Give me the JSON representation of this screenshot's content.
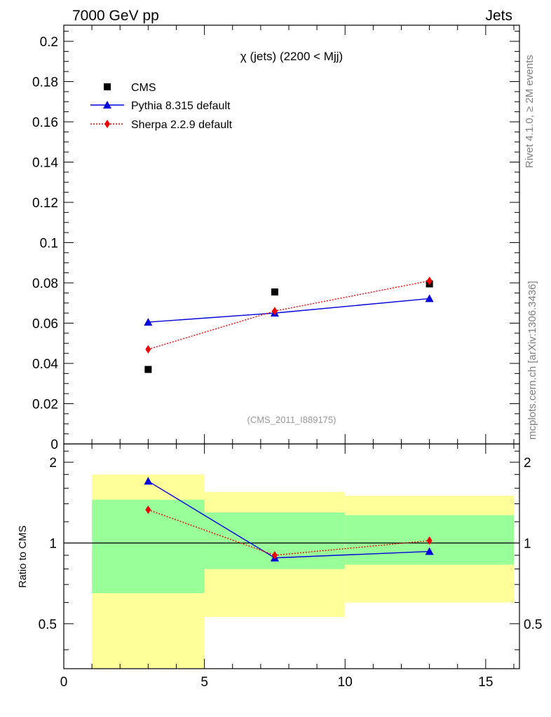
{
  "header": {
    "left": "7000 GeV pp",
    "right": "Jets"
  },
  "side_labels": {
    "rivet": "Rivet 4.1.0, ≥ 2M events",
    "mcplots": "mcplots.cern.ch [arXiv:1306.3436]"
  },
  "watermark": "(CMS_2011_I889175)",
  "chart_data": [
    {
      "type": "scatter",
      "title": "χ (jets) (2200 < Mjj)",
      "xlim": [
        0,
        16.2
      ],
      "ylim": [
        0,
        0.208
      ],
      "xlabel": "",
      "ylabel": "",
      "y_ticks": [
        "0",
        "0.02",
        "0.04",
        "0.06",
        "0.08",
        "0.1",
        "0.12",
        "0.14",
        "0.16",
        "0.18",
        "0.2"
      ],
      "legend_position": "top-left",
      "series": [
        {
          "name": "CMS",
          "color": "#000000",
          "marker": "square",
          "line": "none",
          "x": [
            3,
            7.5,
            13
          ],
          "y": [
            0.037,
            0.0755,
            0.0795
          ]
        },
        {
          "name": "Pythia 8.315 default",
          "color": "#0000dd",
          "marker": "triangle",
          "line": "solid",
          "x": [
            3,
            7.5,
            13
          ],
          "y": [
            0.0605,
            0.065,
            0.0722
          ]
        },
        {
          "name": "Sherpa 2.2.9 default",
          "color": "#ee0000",
          "marker": "diamond",
          "line": "dotted",
          "x": [
            3,
            7.5,
            13
          ],
          "y": [
            0.047,
            0.066,
            0.081
          ]
        }
      ]
    },
    {
      "type": "line",
      "title": "",
      "ylabel": "Ratio to CMS",
      "xlim": [
        0,
        16.2
      ],
      "ylim": [
        0.34,
        2.34
      ],
      "y_scale": "log",
      "x_ticks": [
        "0",
        "5",
        "10",
        "15"
      ],
      "y_ticks": [
        "0.5",
        "1",
        "2"
      ],
      "reference_line": 1,
      "bands": [
        {
          "x_range": [
            1,
            5
          ],
          "yellow": [
            0.3,
            1.8
          ],
          "green": [
            0.65,
            1.45
          ]
        },
        {
          "x_range": [
            5,
            10
          ],
          "yellow": [
            0.53,
            1.55
          ],
          "green": [
            0.8,
            1.3
          ]
        },
        {
          "x_range": [
            10,
            16
          ],
          "yellow": [
            0.6,
            1.5
          ],
          "green": [
            0.83,
            1.27
          ]
        }
      ],
      "series": [
        {
          "name": "Pythia 8.315 default",
          "color": "#0000dd",
          "marker": "triangle",
          "line": "solid",
          "x": [
            3,
            7.5,
            13
          ],
          "y": [
            1.7,
            0.88,
            0.93
          ]
        },
        {
          "name": "Sherpa 2.2.9 default",
          "color": "#ee0000",
          "marker": "diamond",
          "line": "dotted",
          "x": [
            3,
            7.5,
            13
          ],
          "y": [
            1.33,
            0.9,
            1.02
          ]
        }
      ]
    }
  ]
}
